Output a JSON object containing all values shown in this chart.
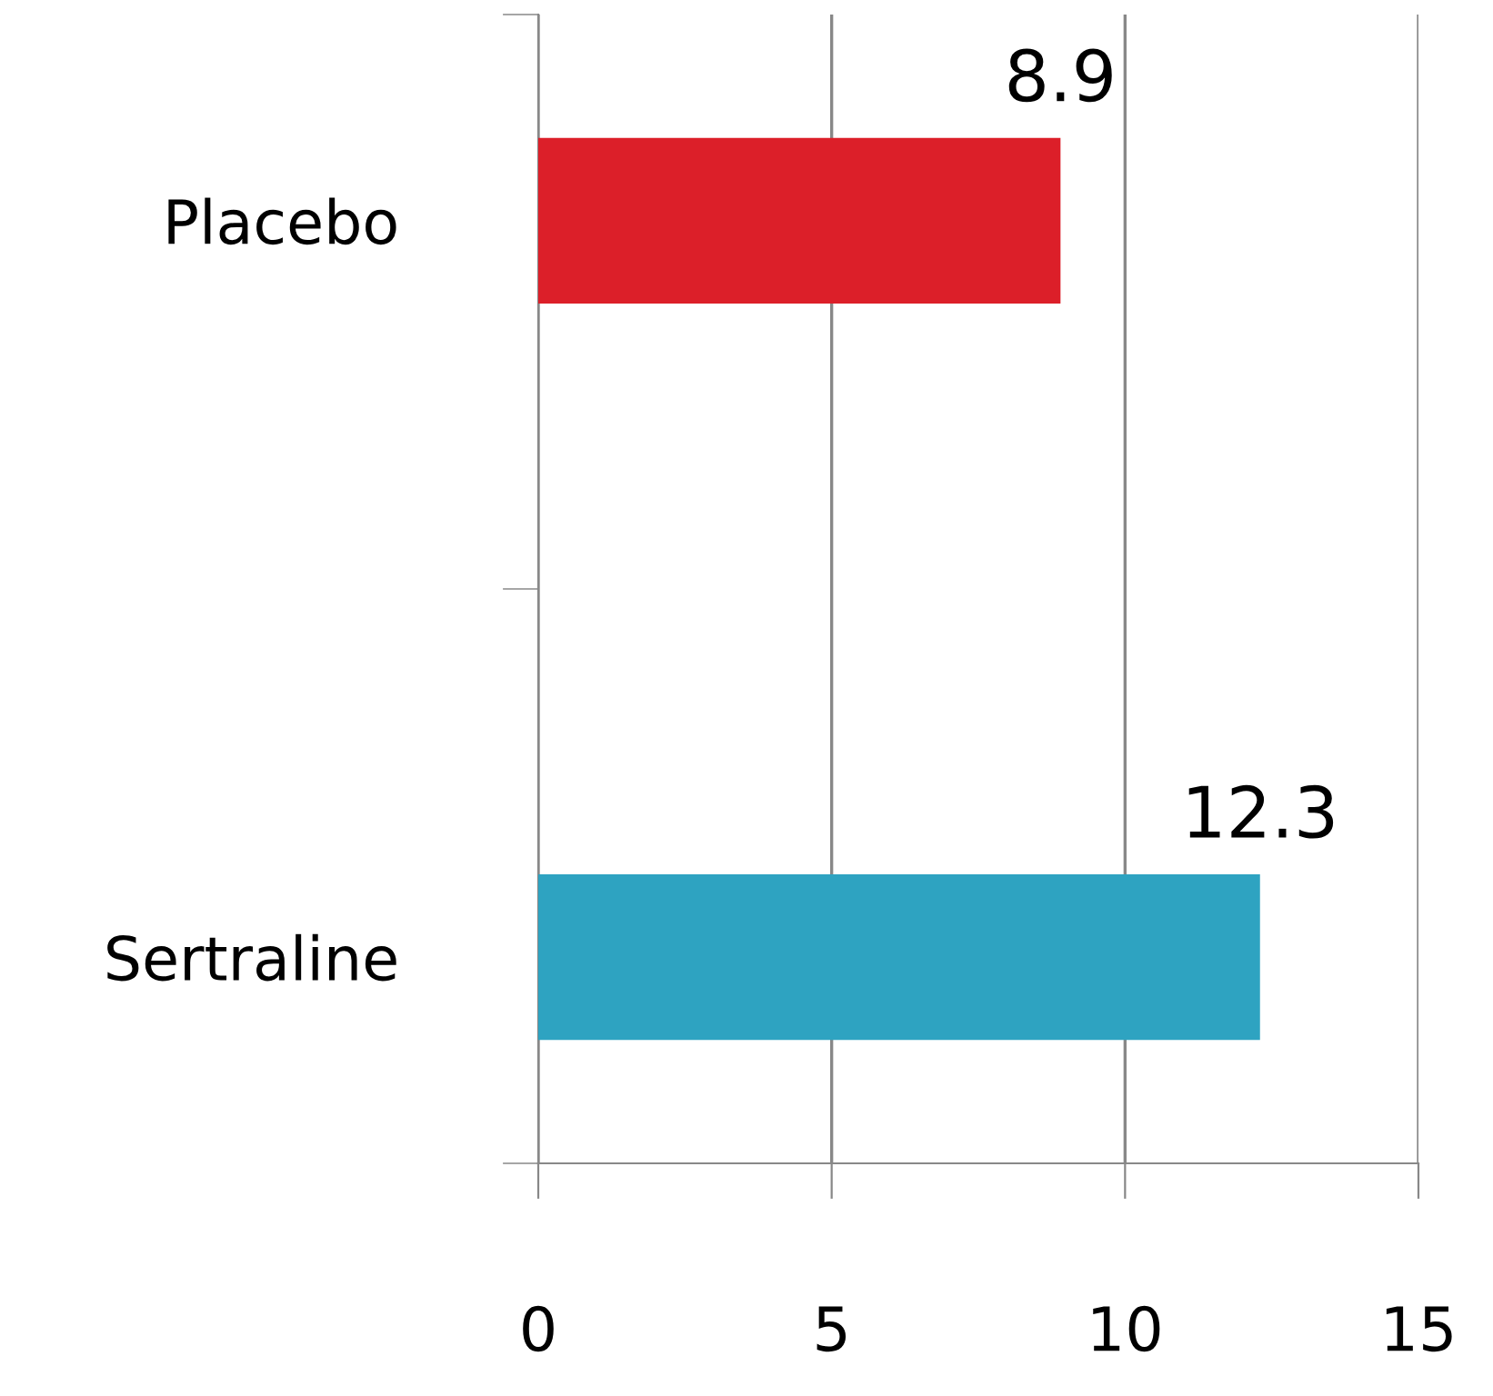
{
  "chart_data": {
    "type": "bar",
    "orientation": "horizontal",
    "categories": [
      "Placebo",
      "Sertraline"
    ],
    "values": [
      8.9,
      12.3
    ],
    "colors": [
      "#dc1f29",
      "#2ea3c1"
    ],
    "xlim": [
      0,
      15
    ],
    "xticks": [
      0,
      5,
      10,
      15
    ],
    "grid": "x",
    "data_labels": true
  }
}
